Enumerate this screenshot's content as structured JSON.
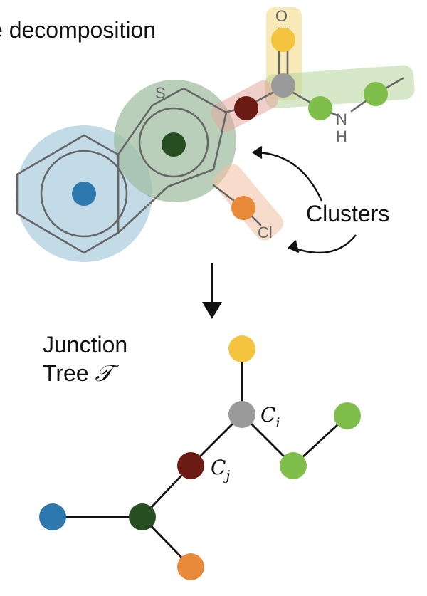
{
  "title": "e decomposition",
  "clusters_label": "Clusters",
  "junction_tree": {
    "line1": "Junction",
    "line2_prefix": "Tree",
    "symbol": "𝒯"
  },
  "atoms": {
    "oxygen": "O",
    "sulfur": "S",
    "nitrogen": "N",
    "hydrogen": "H",
    "chlorine": "Cl"
  },
  "cluster_labels": [
    {
      "name": "ci-label",
      "letter": "C",
      "sub": "i"
    },
    {
      "name": "cj-label",
      "letter": "C",
      "sub": "j"
    }
  ],
  "colors": {
    "yellow": "#f4c43e",
    "gray": "#9a9a9a",
    "dark_red": "#6b1a14",
    "green": "#7fbe4a",
    "dark_green": "#284f22",
    "blue": "#2e78b0",
    "orange": "#e88a3a",
    "halo_blue": "#b9d3e3",
    "halo_green": "#a8c4a8"
  }
}
